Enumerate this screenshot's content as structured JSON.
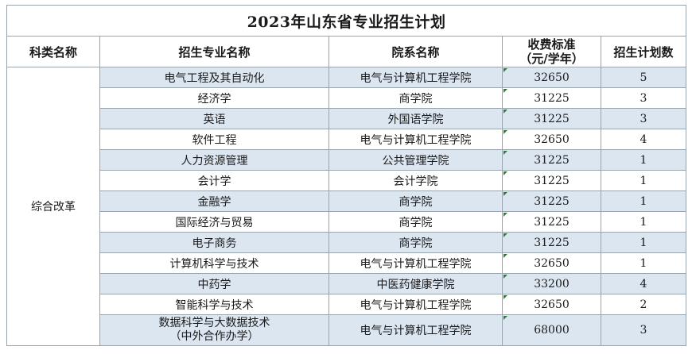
{
  "title": "2023年山东省专业招生计划",
  "headers": {
    "category": "科类名称",
    "major": "招生专业名称",
    "department": "院系名称",
    "fee_line1": "收费标准",
    "fee_line2": "（元/学年）",
    "plan": "招生计划数"
  },
  "category": "综合改革",
  "rows": [
    {
      "major": "电气工程及其自动化",
      "department": "电气与计算机工程学院",
      "fee": "32650",
      "plan": "5"
    },
    {
      "major": "经济学",
      "department": "商学院",
      "fee": "31225",
      "plan": "3"
    },
    {
      "major": "英语",
      "department": "外国语学院",
      "fee": "31225",
      "plan": "3"
    },
    {
      "major": "软件工程",
      "department": "电气与计算机工程学院",
      "fee": "32650",
      "plan": "4"
    },
    {
      "major": "人力资源管理",
      "department": "公共管理学院",
      "fee": "31225",
      "plan": "1"
    },
    {
      "major": "会计学",
      "department": "会计学院",
      "fee": "31225",
      "plan": "1"
    },
    {
      "major": "金融学",
      "department": "商学院",
      "fee": "31225",
      "plan": "1"
    },
    {
      "major": "国际经济与贸易",
      "department": "商学院",
      "fee": "31225",
      "plan": "1"
    },
    {
      "major": "电子商务",
      "department": "商学院",
      "fee": "31225",
      "plan": "1"
    },
    {
      "major": "计算机科学与技术",
      "department": "电气与计算机工程学院",
      "fee": "32650",
      "plan": "1"
    },
    {
      "major": "中药学",
      "department": "中医药健康学院",
      "fee": "33200",
      "plan": "4"
    },
    {
      "major": "智能科学与技术",
      "department": "电气与计算机工程学院",
      "fee": "32650",
      "plan": "2"
    },
    {
      "major": "数据科学与大数据技术",
      "major_line2": "（中外合作办学）",
      "department": "电气与计算机工程学院",
      "fee": "68000",
      "plan": "3"
    }
  ],
  "colors": {
    "shaded_row": "#dce6f1",
    "border": "#9aa4ad",
    "cell_marker": "#2e7d32"
  }
}
